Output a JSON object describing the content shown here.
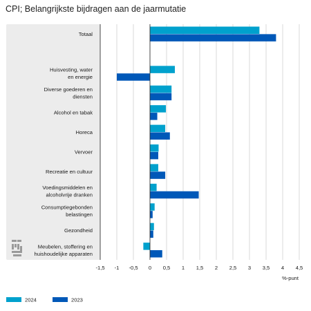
{
  "title": "CPI; Belangrijkste bijdragen aan de jaarmutatie",
  "chart_data": {
    "type": "bar",
    "orientation": "horizontal",
    "title": "CPI; Belangrijkste bijdragen aan de jaarmutatie",
    "xlabel": "%-punt",
    "ylabel": "",
    "xlim": [
      -1.5,
      4.5
    ],
    "xticks": [
      "-1,5",
      "-1",
      "-0,5",
      "0",
      "0,5",
      "1",
      "1,5",
      "2",
      "2,5",
      "3",
      "3,5",
      "4",
      "4,5"
    ],
    "xtick_values": [
      -1.5,
      -1,
      -0.5,
      0,
      0.5,
      1,
      1.5,
      2,
      2.5,
      3,
      3.5,
      4,
      4.5
    ],
    "grid": true,
    "legend_position": "bottom-left",
    "categories": [
      "Totaal",
      "",
      "Huisvesting, water en energie",
      "Diverse goederen en diensten",
      "Alcohol en tabak",
      "Horeca",
      "Vervoer",
      "Recreatie en cultuur",
      "Voedingsmiddelen en alcoholvrije dranken",
      "Consumptiegebonden belastingen",
      "Gezondheid",
      "Meubelen, stoffering en huishoudelijke apparaten"
    ],
    "category_lines": [
      [
        "Totaal"
      ],
      [],
      [
        "Huisvesting, water",
        "en energie"
      ],
      [
        "Diverse goederen en",
        "diensten"
      ],
      [
        "Alcohol en tabak"
      ],
      [
        "Horeca"
      ],
      [
        "Vervoer"
      ],
      [
        "Recreatie en cultuur"
      ],
      [
        "Voedingsmiddelen en",
        "alcoholvrije dranken"
      ],
      [
        "Consumptiegebonden",
        "belastingen"
      ],
      [
        "Gezondheid"
      ],
      [
        "Meubelen, stoffering en",
        "huishoudelijke apparaten"
      ]
    ],
    "series": [
      {
        "name": "2024",
        "color": "#00a1cd",
        "values": [
          3.3,
          null,
          0.75,
          0.65,
          0.48,
          0.46,
          0.26,
          0.25,
          0.2,
          0.14,
          0.12,
          -0.2
        ]
      },
      {
        "name": "2023",
        "color": "#0058b8",
        "values": [
          3.8,
          null,
          -1.0,
          0.65,
          0.22,
          0.6,
          0.25,
          0.46,
          1.47,
          0.08,
          0.1,
          0.37
        ]
      }
    ]
  },
  "colors": {
    "panel_background": "#ececec",
    "gridline": "#d0d0d0",
    "axis_line": "#333333",
    "logo": "#9a9a9a"
  },
  "logo_icon": "cbs-logo-icon"
}
